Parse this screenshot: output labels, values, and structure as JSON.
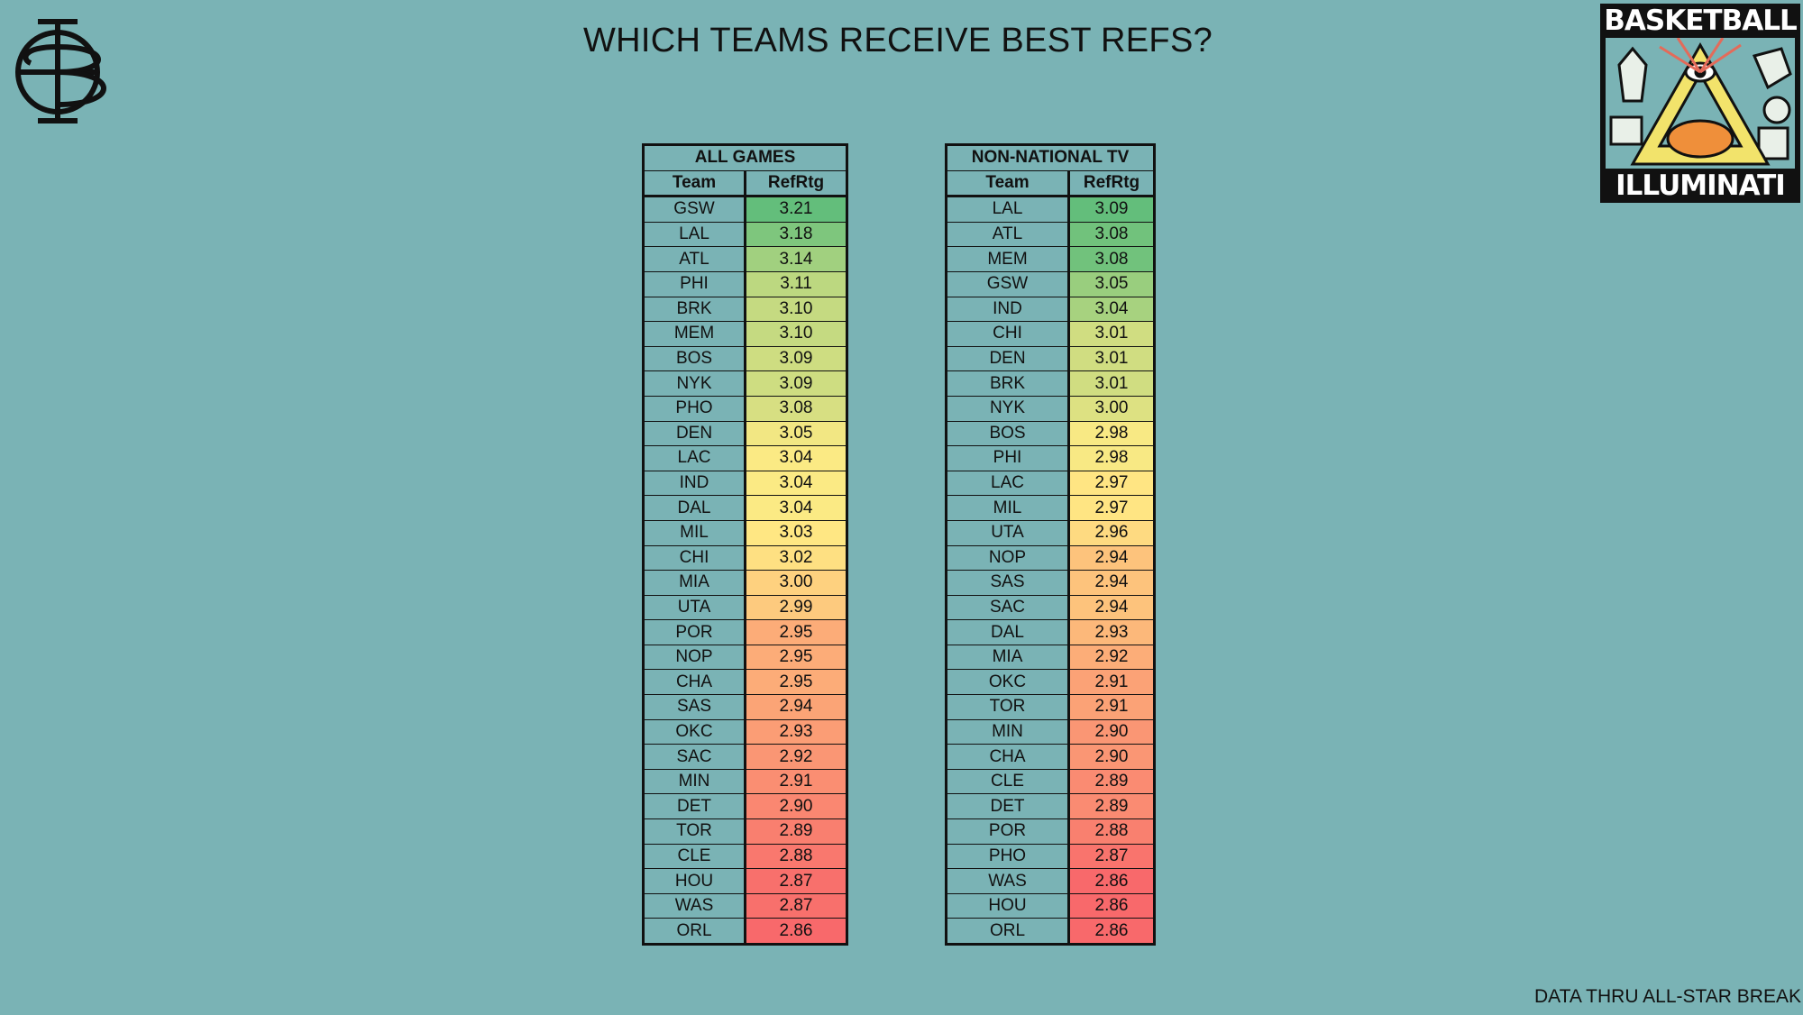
{
  "title": "WHICH TEAMS RECEIVE BEST REFS?",
  "footer": "DATA THRU ALL-STAR BREAK",
  "logo_right": {
    "top_word": "BASKETBALL",
    "bottom_word": "ILLUMINATI"
  },
  "colors": {
    "background": "#7ab3b5",
    "high": "#63be7b",
    "mid": "#ffeb84",
    "low": "#f8696b"
  },
  "chart_data": [
    {
      "type": "table",
      "title": "ALL GAMES",
      "columns": [
        "Team",
        "RefRtg"
      ],
      "rows": [
        [
          "GSW",
          "3.21"
        ],
        [
          "LAL",
          "3.18"
        ],
        [
          "ATL",
          "3.14"
        ],
        [
          "PHI",
          "3.11"
        ],
        [
          "BRK",
          "3.10"
        ],
        [
          "MEM",
          "3.10"
        ],
        [
          "BOS",
          "3.09"
        ],
        [
          "NYK",
          "3.09"
        ],
        [
          "PHO",
          "3.08"
        ],
        [
          "DEN",
          "3.05"
        ],
        [
          "LAC",
          "3.04"
        ],
        [
          "IND",
          "3.04"
        ],
        [
          "DAL",
          "3.04"
        ],
        [
          "MIL",
          "3.03"
        ],
        [
          "CHI",
          "3.02"
        ],
        [
          "MIA",
          "3.00"
        ],
        [
          "UTA",
          "2.99"
        ],
        [
          "POR",
          "2.95"
        ],
        [
          "NOP",
          "2.95"
        ],
        [
          "CHA",
          "2.95"
        ],
        [
          "SAS",
          "2.94"
        ],
        [
          "OKC",
          "2.93"
        ],
        [
          "SAC",
          "2.92"
        ],
        [
          "MIN",
          "2.91"
        ],
        [
          "DET",
          "2.90"
        ],
        [
          "TOR",
          "2.89"
        ],
        [
          "CLE",
          "2.88"
        ],
        [
          "HOU",
          "2.87"
        ],
        [
          "WAS",
          "2.87"
        ],
        [
          "ORL",
          "2.86"
        ]
      ]
    },
    {
      "type": "table",
      "title": "NON-NATIONAL TV",
      "columns": [
        "Team",
        "RefRtg"
      ],
      "rows": [
        [
          "LAL",
          "3.09"
        ],
        [
          "ATL",
          "3.08"
        ],
        [
          "MEM",
          "3.08"
        ],
        [
          "GSW",
          "3.05"
        ],
        [
          "IND",
          "3.04"
        ],
        [
          "CHI",
          "3.01"
        ],
        [
          "DEN",
          "3.01"
        ],
        [
          "BRK",
          "3.01"
        ],
        [
          "NYK",
          "3.00"
        ],
        [
          "BOS",
          "2.98"
        ],
        [
          "PHI",
          "2.98"
        ],
        [
          "LAC",
          "2.97"
        ],
        [
          "MIL",
          "2.97"
        ],
        [
          "UTA",
          "2.96"
        ],
        [
          "NOP",
          "2.94"
        ],
        [
          "SAS",
          "2.94"
        ],
        [
          "SAC",
          "2.94"
        ],
        [
          "DAL",
          "2.93"
        ],
        [
          "MIA",
          "2.92"
        ],
        [
          "OKC",
          "2.91"
        ],
        [
          "TOR",
          "2.91"
        ],
        [
          "MIN",
          "2.90"
        ],
        [
          "CHA",
          "2.90"
        ],
        [
          "CLE",
          "2.89"
        ],
        [
          "DET",
          "2.89"
        ],
        [
          "POR",
          "2.88"
        ],
        [
          "PHO",
          "2.87"
        ],
        [
          "WAS",
          "2.86"
        ],
        [
          "HOU",
          "2.86"
        ],
        [
          "ORL",
          "2.86"
        ]
      ]
    }
  ]
}
